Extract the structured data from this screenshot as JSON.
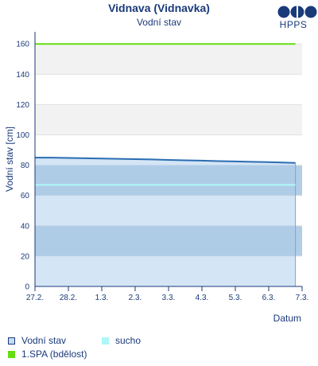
{
  "header": {
    "title": "Vidnava (Vidnavka)",
    "subtitle": "Vodní stav",
    "logo_text": "HPPS"
  },
  "chart_data": {
    "type": "area",
    "ylabel": "Vodní stav [cm]",
    "xlabel": "Datum",
    "ylim": [
      0,
      168
    ],
    "yticks": [
      0,
      20,
      40,
      60,
      80,
      100,
      120,
      140,
      160
    ],
    "xticks": [
      "27.2.",
      "28.2.",
      "1.3.",
      "2.3.",
      "3.3.",
      "4.3.",
      "5.3.",
      "6.3.",
      "7.3."
    ],
    "xlim_days": [
      0,
      8
    ],
    "bands": [
      {
        "from": 100,
        "to": 120,
        "color": "#f2f2f2"
      },
      {
        "from": 140,
        "to": 160,
        "color": "#f2f2f2"
      },
      {
        "from": 20,
        "to": 40,
        "color": "#b2cde6"
      },
      {
        "from": 60,
        "to": 80,
        "color": "#b2cde6"
      }
    ],
    "series": [
      {
        "name": "Vodní stav",
        "color": "#2a6db3",
        "fill": "#c5dcf2",
        "x": [
          0.0,
          0.5,
          1.0,
          1.5,
          2.0,
          2.5,
          3.0,
          3.5,
          4.0,
          4.5,
          5.0,
          5.5,
          6.0,
          6.5,
          7.0,
          7.8
        ],
        "y": [
          85,
          85,
          84.8,
          84.6,
          84.4,
          84.2,
          84,
          83.8,
          83.5,
          83.2,
          83,
          82.7,
          82.5,
          82.2,
          82,
          81.5
        ]
      },
      {
        "name": "sucho",
        "color": "#aef7f7",
        "value": 67
      },
      {
        "name": "1.SPA (bdělost)",
        "color": "#66dd11",
        "value": 160
      }
    ],
    "legend": [
      {
        "label": "Vodní stav",
        "swatch": "box",
        "color": "#2a6db3",
        "fill": "#c5dcf2"
      },
      {
        "label": "sucho",
        "swatch": "solid",
        "color": "#aef7f7"
      },
      {
        "label": "1.SPA (bdělost)",
        "swatch": "solid",
        "color": "#66dd11"
      }
    ]
  }
}
